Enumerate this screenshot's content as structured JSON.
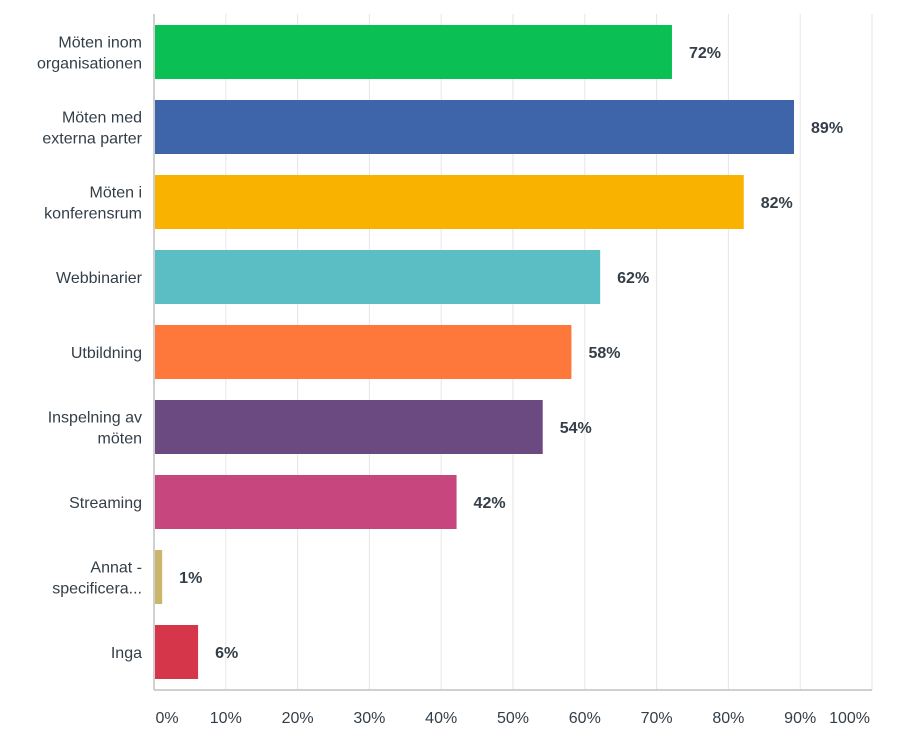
{
  "chart_data": {
    "type": "bar",
    "orientation": "horizontal",
    "categories": [
      [
        "Möten inom",
        "organisationen"
      ],
      [
        "Möten med",
        "externa parter"
      ],
      [
        "Möten i",
        "konferensrum"
      ],
      [
        "Webbinarier"
      ],
      [
        "Utbildning"
      ],
      [
        "Inspelning av",
        "möten"
      ],
      [
        "Streaming"
      ],
      [
        "Annat -",
        "specificera..."
      ],
      [
        "Inga"
      ]
    ],
    "values": [
      72,
      89,
      82,
      62,
      58,
      54,
      42,
      1,
      6
    ],
    "value_labels": [
      "72%",
      "89%",
      "82%",
      "62%",
      "58%",
      "54%",
      "42%",
      "1%",
      "6%"
    ],
    "colors": [
      "#0abf53",
      "#3e65aa",
      "#f9b200",
      "#5bbec4",
      "#fe773b",
      "#6a4a80",
      "#c7467e",
      "#c9b66a",
      "#d5364a"
    ],
    "xlim": [
      0,
      100
    ],
    "xticks": [
      "0%",
      "10%",
      "20%",
      "30%",
      "40%",
      "50%",
      "60%",
      "70%",
      "80%",
      "90%",
      "100%"
    ],
    "grid": true,
    "title": "",
    "xlabel": "",
    "ylabel": ""
  }
}
